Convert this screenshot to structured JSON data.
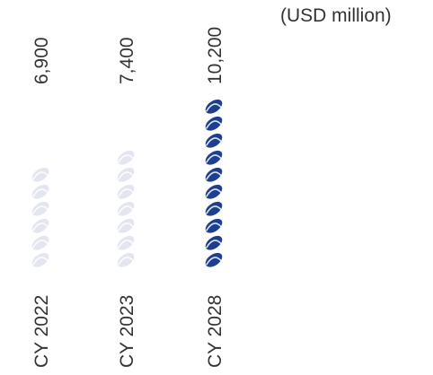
{
  "chart_data": {
    "type": "bar",
    "orientation": "vertical-pictograph",
    "unit": "(USD million)",
    "categories": [
      "CY 2022",
      "CY 2023",
      "CY 2028"
    ],
    "values": [
      6900,
      7400,
      10200
    ],
    "value_labels": [
      "6,900",
      "7,400",
      "10,200"
    ],
    "ylim": [
      0,
      10200
    ],
    "grid": false,
    "legend": "none",
    "colors": {
      "past_years": "#e3e6ef",
      "forecast_year": "#1e3f8f",
      "text": "#333333"
    },
    "icon": "dna-helix-icon"
  }
}
